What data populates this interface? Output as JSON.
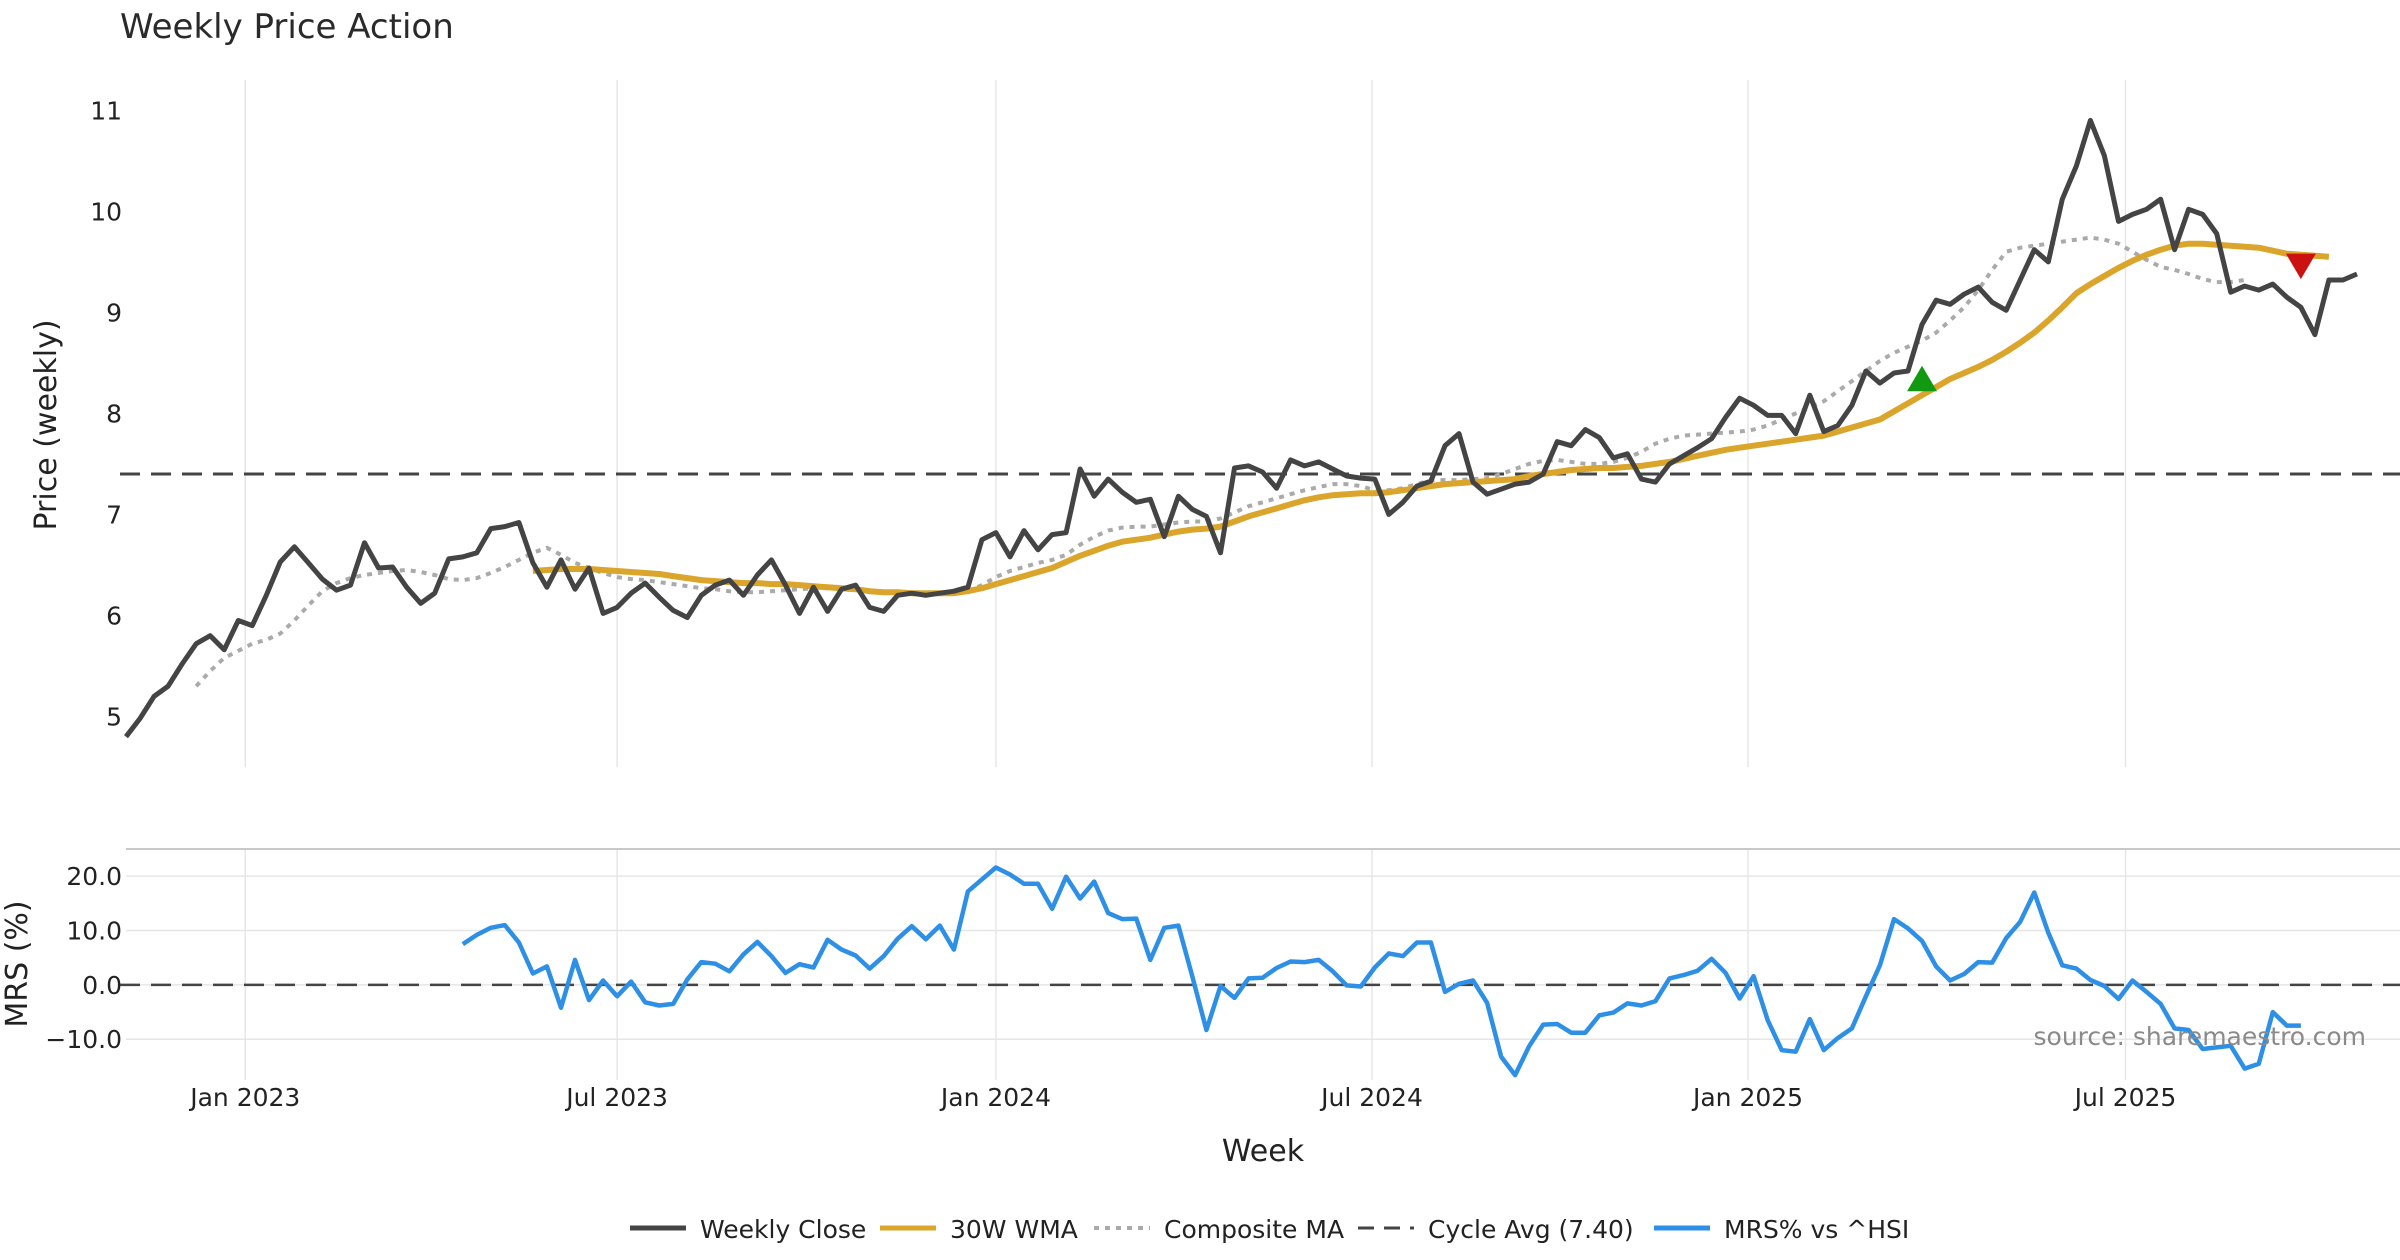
{
  "chart_data": {
    "type": "line",
    "title": "Weekly Price Action",
    "source": "source: sharemaestro.com",
    "xlabel": "Week",
    "x_ticks": [
      "Jan 2023",
      "Jul 2023",
      "Jan 2024",
      "Jul 2024",
      "Jan 2025",
      "Jul 2025"
    ],
    "grid": true,
    "legend_position": "bottom-center",
    "price_panel": {
      "ylabel": "Price (weekly)",
      "ylim": [
        4.5,
        11.3
      ],
      "yticks": [
        "5",
        "6",
        "7",
        "8",
        "9",
        "10",
        "11"
      ],
      "cycle_avg": 7.4,
      "weekly_close": [
        4.8,
        4.98,
        5.2,
        5.3,
        5.52,
        5.72,
        5.8,
        5.66,
        5.95,
        5.9,
        6.2,
        6.53,
        6.68,
        6.52,
        6.36,
        6.25,
        6.3,
        6.72,
        6.47,
        6.48,
        6.28,
        6.12,
        6.22,
        6.56,
        6.58,
        6.62,
        6.86,
        6.88,
        6.92,
        6.52,
        6.28,
        6.55,
        6.26,
        6.47,
        6.02,
        6.08,
        6.22,
        6.32,
        6.18,
        6.05,
        5.98,
        6.2,
        6.3,
        6.35,
        6.2,
        6.4,
        6.55,
        6.3,
        6.02,
        6.28,
        6.04,
        6.26,
        6.3,
        6.08,
        6.04,
        6.2,
        6.22,
        6.2,
        6.22,
        6.24,
        6.28,
        6.75,
        6.82,
        6.58,
        6.84,
        6.65,
        6.8,
        6.82,
        7.45,
        7.18,
        7.35,
        7.22,
        7.12,
        7.15,
        6.78,
        7.18,
        7.05,
        6.98,
        6.62,
        7.46,
        7.48,
        7.42,
        7.26,
        7.54,
        7.48,
        7.52,
        7.45,
        7.38,
        7.36,
        7.35,
        7.0,
        7.12,
        7.28,
        7.33,
        7.68,
        7.8,
        7.32,
        7.2,
        7.25,
        7.3,
        7.32,
        7.4,
        7.72,
        7.68,
        7.84,
        7.76,
        7.56,
        7.6,
        7.35,
        7.32,
        7.5,
        7.58,
        7.66,
        7.75,
        7.96,
        8.15,
        8.08,
        7.98,
        7.98,
        7.8,
        8.18,
        7.82,
        7.88,
        8.08,
        8.42,
        8.3,
        8.4,
        8.42,
        8.88,
        9.12,
        9.08,
        9.18,
        9.25,
        9.1,
        9.02,
        9.32,
        9.62,
        9.5,
        10.12,
        10.45,
        10.9,
        10.55,
        9.9,
        9.97,
        10.02,
        10.12,
        9.62,
        10.02,
        9.97,
        9.78,
        9.2,
        9.26,
        9.22,
        9.28,
        9.15,
        9.05,
        8.78,
        9.32,
        9.32,
        9.38
      ],
      "wma_30w": {
        "start_index": 29,
        "values": [
          6.44,
          6.45,
          6.46,
          6.46,
          6.46,
          6.45,
          6.44,
          6.43,
          6.42,
          6.41,
          6.39,
          6.37,
          6.35,
          6.34,
          6.33,
          6.32,
          6.32,
          6.31,
          6.31,
          6.3,
          6.29,
          6.28,
          6.27,
          6.26,
          6.24,
          6.23,
          6.23,
          6.22,
          6.22,
          6.22,
          6.22,
          6.24,
          6.27,
          6.31,
          6.35,
          6.39,
          6.43,
          6.47,
          6.53,
          6.59,
          6.64,
          6.69,
          6.73,
          6.75,
          6.77,
          6.8,
          6.83,
          6.85,
          6.86,
          6.88,
          6.93,
          6.98,
          7.02,
          7.06,
          7.1,
          7.14,
          7.17,
          7.19,
          7.2,
          7.21,
          7.21,
          7.22,
          7.24,
          7.26,
          7.28,
          7.3,
          7.31,
          7.32,
          7.33,
          7.34,
          7.35,
          7.38,
          7.4,
          7.42,
          7.44,
          7.45,
          7.46,
          7.46,
          7.47,
          7.48,
          7.5,
          7.52,
          7.55,
          7.58,
          7.61,
          7.64,
          7.66,
          7.68,
          7.7,
          7.72,
          7.74,
          7.76,
          7.78,
          7.82,
          7.86,
          7.9,
          7.94,
          8.02,
          8.1,
          8.18,
          8.26,
          8.34,
          8.4,
          8.46,
          8.53,
          8.61,
          8.7,
          8.8,
          8.92,
          9.05,
          9.19,
          9.28,
          9.36,
          9.44,
          9.51,
          9.57,
          9.62,
          9.66,
          9.68,
          9.68,
          9.67,
          9.66,
          9.65,
          9.64,
          9.61,
          9.58,
          9.57,
          9.56,
          9.55
        ]
      },
      "composite_ma": {
        "start_index": 5,
        "values": [
          5.3,
          5.45,
          5.58,
          5.65,
          5.72,
          5.76,
          5.82,
          5.95,
          6.1,
          6.24,
          6.32,
          6.37,
          6.4,
          6.42,
          6.44,
          6.45,
          6.43,
          6.4,
          6.36,
          6.35,
          6.37,
          6.42,
          6.48,
          6.55,
          6.62,
          6.67,
          6.6,
          6.52,
          6.47,
          6.42,
          6.38,
          6.36,
          6.35,
          6.33,
          6.31,
          6.29,
          6.27,
          6.26,
          6.24,
          6.23,
          6.23,
          6.24,
          6.25,
          6.26,
          6.27,
          6.27,
          6.26,
          6.25,
          6.24,
          6.23,
          6.22,
          6.21,
          6.21,
          6.22,
          6.23,
          6.24,
          6.3,
          6.38,
          6.44,
          6.48,
          6.52,
          6.55,
          6.6,
          6.7,
          6.78,
          6.84,
          6.87,
          6.88,
          6.88,
          6.9,
          6.92,
          6.93,
          6.93,
          6.96,
          7.02,
          7.08,
          7.12,
          7.16,
          7.2,
          7.24,
          7.27,
          7.3,
          7.3,
          7.28,
          7.24,
          7.24,
          7.26,
          7.3,
          7.34,
          7.34,
          7.34,
          7.35,
          7.36,
          7.4,
          7.45,
          7.5,
          7.53,
          7.54,
          7.52,
          7.5,
          7.5,
          7.52,
          7.56,
          7.62,
          7.7,
          7.75,
          7.78,
          7.79,
          7.8,
          7.81,
          7.82,
          7.84,
          7.88,
          7.94,
          8.0,
          8.06,
          8.12,
          8.22,
          8.32,
          8.42,
          8.52,
          8.6,
          8.66,
          8.72,
          8.8,
          8.92,
          9.05,
          9.22,
          9.42,
          9.6,
          9.64,
          9.66,
          9.68,
          9.7,
          9.72,
          9.74,
          9.72,
          9.68,
          9.6,
          9.52,
          9.45,
          9.42,
          9.38,
          9.33,
          9.3,
          9.3,
          9.32
        ]
      },
      "markers": [
        {
          "type": "buy",
          "index": 128,
          "value": 8.33,
          "color": "#119911"
        },
        {
          "type": "sell",
          "index": 155,
          "value": 9.47,
          "color": "#cc1111"
        }
      ]
    },
    "mrs_panel": {
      "ylabel": "MRS (%)",
      "ylim": [
        -17.5,
        25
      ],
      "yticks": [
        "20.0",
        "10.0",
        "0.0",
        "−10.0"
      ],
      "start_index": 24,
      "values": [
        7.5,
        9.2,
        10.5,
        11.0,
        7.8,
        2.1,
        3.4,
        -4.2,
        4.6,
        -2.8,
        0.8,
        -2.1,
        0.6,
        -3.2,
        -3.8,
        -3.5,
        1.0,
        4.2,
        3.9,
        2.5,
        5.6,
        7.9,
        5.3,
        2.2,
        3.8,
        3.2,
        8.3,
        6.5,
        5.4,
        3.0,
        5.3,
        8.5,
        10.8,
        8.4,
        10.9,
        6.5,
        17.2,
        19.4,
        21.6,
        20.3,
        18.6,
        18.6,
        14.0,
        19.9,
        15.9,
        19.0,
        13.2,
        12.1,
        12.2,
        4.6,
        10.5,
        10.9,
        1.5,
        -8.3,
        -0.2,
        -2.4,
        1.2,
        1.3,
        3.1,
        4.3,
        4.2,
        4.6,
        2.5,
        -0.1,
        -0.3,
        3.2,
        5.8,
        5.3,
        7.8,
        7.8,
        -1.3,
        0.2,
        0.8,
        -3.3,
        -13.2,
        -16.6,
        -11.3,
        -7.3,
        -7.2,
        -8.8,
        -8.8,
        -5.6,
        -5.1,
        -3.4,
        -3.8,
        -3.0,
        1.2,
        1.8,
        2.6,
        4.8,
        2.2,
        -2.5,
        1.6,
        -6.5,
        -12.0,
        -12.3,
        -6.3,
        -12.0,
        -9.8,
        -8.0,
        -2.1,
        3.6,
        12.1,
        10.4,
        8.1,
        3.4,
        0.8,
        2.0,
        4.2,
        4.1,
        8.6,
        11.6,
        17.0,
        9.6,
        3.6,
        3.0,
        0.9,
        -0.2,
        -2.6,
        0.8,
        -1.3,
        -3.5,
        -8.0,
        -8.3,
        -11.8,
        -11.5,
        -11.2,
        -15.4,
        -14.5,
        -5.0,
        -7.5,
        -7.5
      ],
      "zero_line": 0
    },
    "weeks_total": 160,
    "x_tick_positions": [
      8.5,
      35,
      62,
      88.8,
      115.6,
      142.5
    ],
    "legend": [
      {
        "label": "Weekly Close",
        "color": "#444444",
        "style": "solid"
      },
      {
        "label": "30W WMA",
        "color": "#DAA52A",
        "style": "solid"
      },
      {
        "label": "Composite MA",
        "color": "#AAAAAA",
        "style": "dotted"
      },
      {
        "label": "Cycle Avg (7.40)",
        "color": "#444444",
        "style": "dashed"
      },
      {
        "label": "MRS% vs ^HSI",
        "color": "#2E8FE6",
        "style": "solid"
      }
    ]
  },
  "colors": {
    "close": "#444444",
    "wma": "#DAA52A",
    "composite": "#AAAAAA",
    "mrs": "#2E8FE6",
    "grid": "#E6E6E6"
  }
}
